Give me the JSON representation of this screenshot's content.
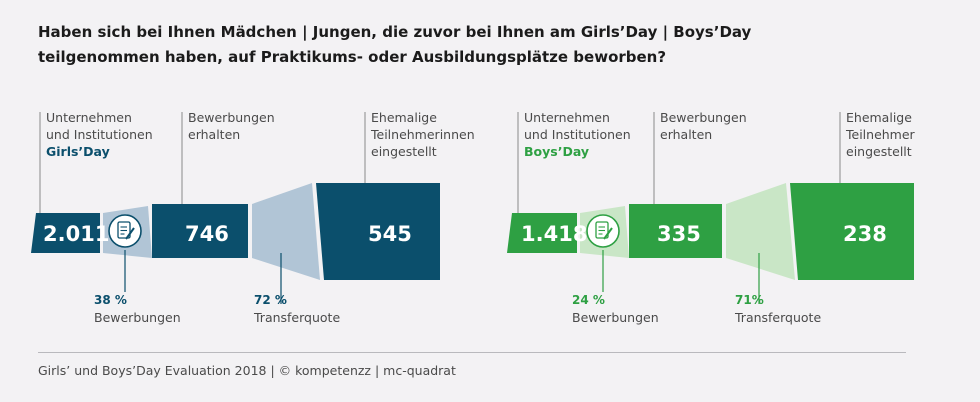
{
  "title_lines": [
    "Haben sich bei Ihnen Mädchen | Jungen, die zuvor bei Ihnen am Girls’Day | Boys’Day",
    "teilgenommen haben, auf Praktikums- oder Ausbildungsplätze beworben?"
  ],
  "footer": "Girls’ und Boys’Day Evaluation 2018 | © kompetenzz | mc-quadrat",
  "colors": {
    "girls_dark": "#0b4f6c",
    "girls_light": "#b1c5d6",
    "boys_dark": "#2ea043",
    "boys_light": "#c9e6c6",
    "text": "#4a4a4a",
    "leader": "#8a8a8a"
  },
  "icons": [
    "document-pen-icon"
  ],
  "chart_data": [
    {
      "type": "funnel",
      "panel": "girls",
      "stages": [
        {
          "value": "2.011",
          "label_lines": [
            "Unternehmen",
            "und Institutionen"
          ],
          "highlight": "Girls’Day"
        },
        {
          "value": "746",
          "label_lines": [
            "Bewerbungen",
            "erhalten"
          ]
        },
        {
          "value": "545",
          "label_lines": [
            "Ehemalige",
            "Teilnehmerinnen",
            "eingestellt"
          ]
        }
      ],
      "rates": [
        {
          "value": "38 %",
          "label": "Bewerbungen"
        },
        {
          "value": "72 %",
          "label": "Transferquote"
        }
      ]
    },
    {
      "type": "funnel",
      "panel": "boys",
      "stages": [
        {
          "value": "1.418",
          "label_lines": [
            "Unternehmen",
            "und Institutionen"
          ],
          "highlight": "Boys’Day"
        },
        {
          "value": "335",
          "label_lines": [
            "Bewerbungen",
            "erhalten"
          ]
        },
        {
          "value": "238",
          "label_lines": [
            "Ehemalige",
            "Teilnehmer",
            "eingestellt"
          ]
        }
      ],
      "rates": [
        {
          "value": "24 %",
          "label": "Bewerbungen"
        },
        {
          "value": "71%",
          "label": "Transferquote"
        }
      ]
    }
  ]
}
